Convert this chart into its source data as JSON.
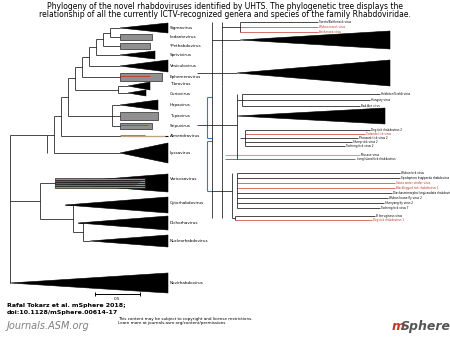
{
  "title_line1": "Phylogeny of the novel rhabdoviruses identified by UHTS. The phylogenetic tree displays the",
  "title_line2": "relationship of all the currently ICTV-recognized genera and species of the family Rhabdoviridae.",
  "citation_bold": "Rafal Tokarz et al. mSphere 2018;",
  "citation_doi": "doi:10.1128/mSphere.00614-17",
  "journal_text": "Journals.ASM.org",
  "copyright_line1": "This content may be subject to copyright and license restrictions.",
  "copyright_line2": "Learn more at journals.asm.org/content/permissions",
  "bg_color": "#ffffff",
  "scale_label": "0.5",
  "blue_bracket_color": "#4472c4",
  "red_color": "#c0392b",
  "tan_color": "#c8a882"
}
